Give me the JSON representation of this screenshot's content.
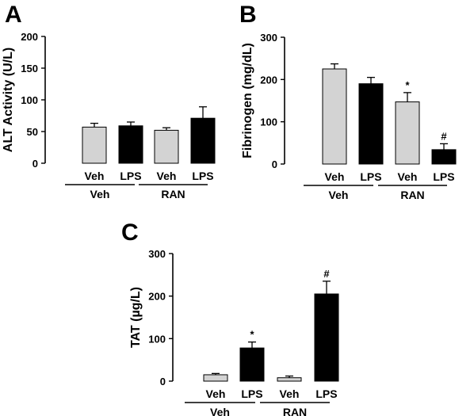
{
  "figure": {
    "panels": [
      {
        "letter": "A",
        "chart_ref": 0
      },
      {
        "letter": "B",
        "chart_ref": 1
      },
      {
        "letter": "C",
        "chart_ref": 2
      }
    ]
  },
  "chart_data": [
    {
      "type": "bar",
      "title": "",
      "ylabel": "ALT Activity (U/L)",
      "xlabel": "",
      "ylim": [
        0,
        200
      ],
      "yticks": [
        0,
        50,
        100,
        150,
        200
      ],
      "categories": [
        "Veh",
        "LPS",
        "Veh",
        "LPS"
      ],
      "groups": [
        {
          "label": "Veh",
          "span": [
            0,
            1
          ]
        },
        {
          "label": "RAN",
          "span": [
            2,
            3
          ]
        }
      ],
      "values": [
        57,
        59,
        52,
        71
      ],
      "errors": [
        6,
        6,
        4,
        18
      ],
      "bar_colors": [
        "#d3d3d3",
        "#000000",
        "#d3d3d3",
        "#000000"
      ],
      "annotations": [
        "",
        "",
        "",
        ""
      ]
    },
    {
      "type": "bar",
      "title": "",
      "ylabel": "Fibrinogen (mg/dL)",
      "xlabel": "",
      "ylim": [
        0,
        300
      ],
      "yticks": [
        0,
        100,
        200,
        300
      ],
      "categories": [
        "Veh",
        "LPS",
        "Veh",
        "LPS"
      ],
      "groups": [
        {
          "label": "Veh",
          "span": [
            0,
            1
          ]
        },
        {
          "label": "RAN",
          "span": [
            2,
            3
          ]
        }
      ],
      "values": [
        225,
        190,
        147,
        34
      ],
      "errors": [
        12,
        15,
        22,
        14
      ],
      "bar_colors": [
        "#d3d3d3",
        "#000000",
        "#d3d3d3",
        "#000000"
      ],
      "annotations": [
        "",
        "",
        "*",
        "#"
      ]
    },
    {
      "type": "bar",
      "title": "",
      "ylabel": "TAT (µg/L)",
      "xlabel": "",
      "ylim": [
        0,
        300
      ],
      "yticks": [
        0,
        100,
        200,
        300
      ],
      "categories": [
        "Veh",
        "LPS",
        "Veh",
        "LPS"
      ],
      "groups": [
        {
          "label": "Veh",
          "span": [
            0,
            1
          ]
        },
        {
          "label": "RAN",
          "span": [
            2,
            3
          ]
        }
      ],
      "values": [
        15,
        78,
        8,
        205
      ],
      "errors": [
        3,
        14,
        4,
        30
      ],
      "bar_colors": [
        "#d3d3d3",
        "#000000",
        "#d3d3d3",
        "#000000"
      ],
      "annotations": [
        "",
        "*",
        "",
        "#"
      ]
    }
  ]
}
